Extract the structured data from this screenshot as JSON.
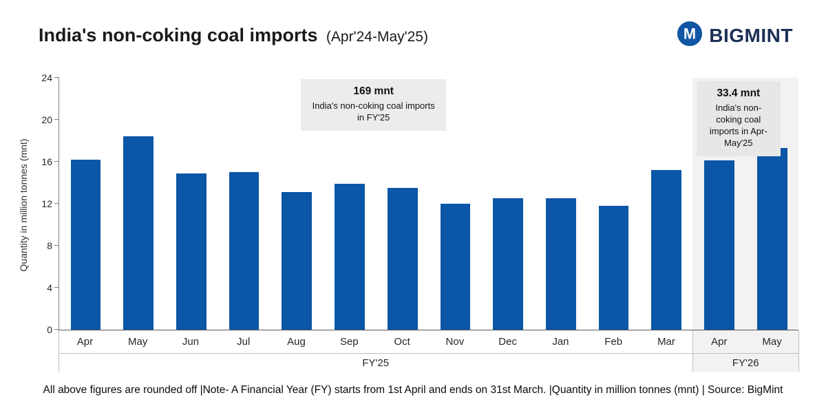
{
  "header": {
    "title": "India's non-coking coal imports",
    "subtitle": "(Apr'24-May'25)",
    "brand": "BIGMINT"
  },
  "chart_data": {
    "type": "bar",
    "title": "India's non-coking coal imports (Apr'24-May'25)",
    "ylabel": "Quantity in million tonnes (mnt)",
    "ylim": [
      0,
      24
    ],
    "yticks": [
      0,
      4,
      8,
      12,
      16,
      20,
      24
    ],
    "bar_color": "#0b56a7",
    "highlight_bg": "#f2f2f2",
    "grid": "off",
    "groups": [
      {
        "label": "FY'25",
        "categories": [
          "Apr",
          "May",
          "Jun",
          "Jul",
          "Aug",
          "Sep",
          "Oct",
          "Nov",
          "Dec",
          "Jan",
          "Feb",
          "Mar"
        ],
        "values": [
          16.2,
          18.4,
          14.9,
          15.0,
          13.1,
          13.9,
          13.5,
          12.0,
          12.5,
          12.5,
          11.8,
          15.2
        ],
        "highlighted": false
      },
      {
        "label": "FY'26",
        "categories": [
          "Apr",
          "May"
        ],
        "values": [
          16.1,
          17.3
        ],
        "highlighted": true
      }
    ],
    "annotations": [
      {
        "value": "169 mnt",
        "text": "India's non-coking coal imports in FY'25"
      },
      {
        "value": "33.4 mnt",
        "text": "India's non-coking coal imports in Apr-May'25"
      }
    ]
  },
  "footer": {
    "note": "All above figures are rounded off |Note- A Financial Year (FY) starts from 1st April and ends on 31st March. |Quantity in million tonnes (mnt) | Source: BigMint"
  }
}
